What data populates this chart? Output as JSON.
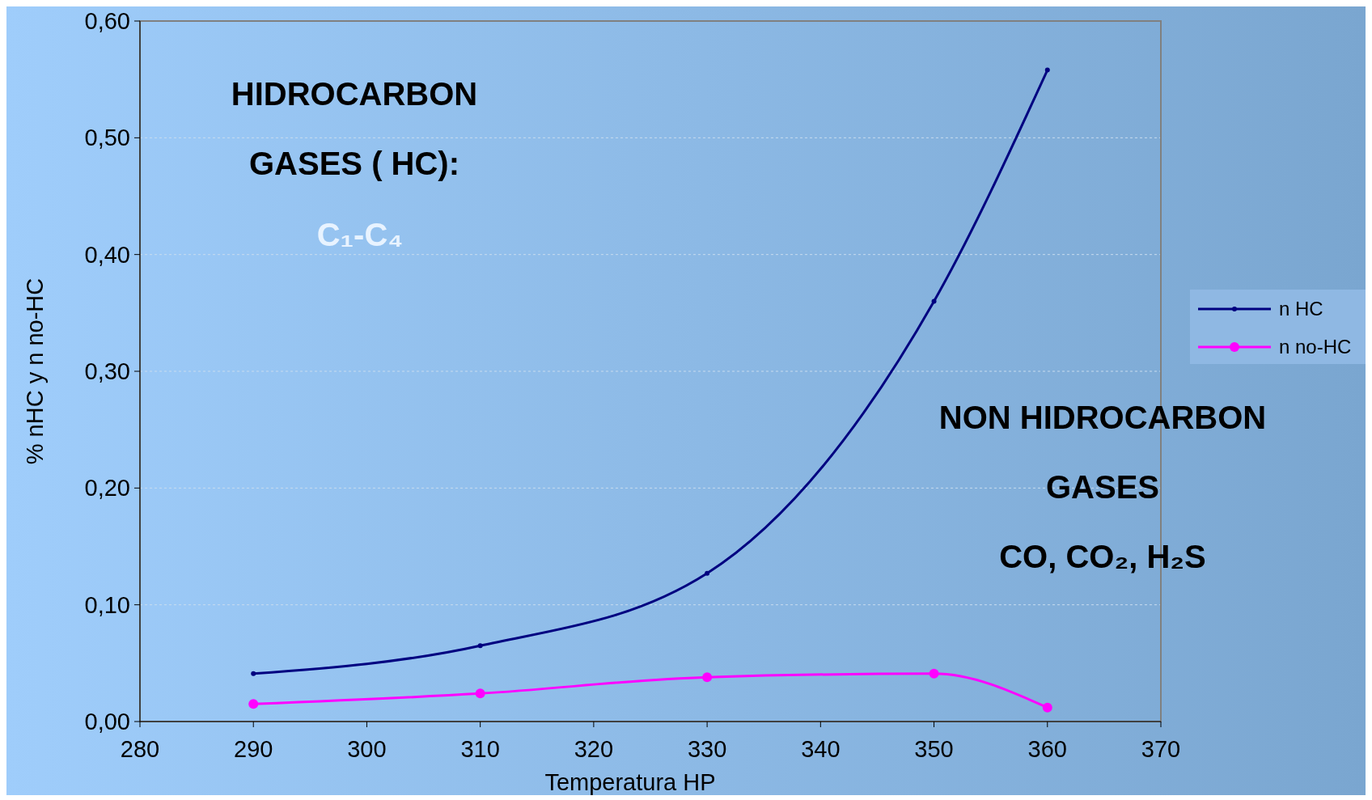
{
  "chart_data": {
    "type": "line",
    "xlabel": "Temperatura HP",
    "ylabel": "% nHC y n no-HC",
    "x": [
      290,
      310,
      330,
      350,
      360
    ],
    "series": [
      {
        "name": "n HC",
        "color": "#000080",
        "values": [
          0.041,
          0.065,
          0.127,
          0.36,
          0.558
        ]
      },
      {
        "name": "n no-HC",
        "color": "#ff00ff",
        "values": [
          0.015,
          0.024,
          0.038,
          0.041,
          0.012
        ]
      }
    ],
    "xlim": [
      280,
      370
    ],
    "xticks": [
      280,
      290,
      300,
      310,
      320,
      330,
      340,
      350,
      360,
      370
    ],
    "ylim": [
      0,
      0.6
    ],
    "yticks": [
      {
        "value": 0,
        "label": "0,00"
      },
      {
        "value": 0.1,
        "label": "0,10"
      },
      {
        "value": 0.2,
        "label": "0,20"
      },
      {
        "value": 0.3,
        "label": "0,30"
      },
      {
        "value": 0.4,
        "label": "0,40"
      },
      {
        "value": 0.5,
        "label": "0,50"
      },
      {
        "value": 0.6,
        "label": "0,60"
      }
    ],
    "grid": "y",
    "legend": "right",
    "marker": "circle",
    "line_style": "solid",
    "annotations": [
      "HIDROCARBON",
      "GASES  ( HC):",
      "C₁-C₄",
      "NON HIDROCARBON",
      "GASES",
      "CO, CO₂, H₂S"
    ]
  }
}
